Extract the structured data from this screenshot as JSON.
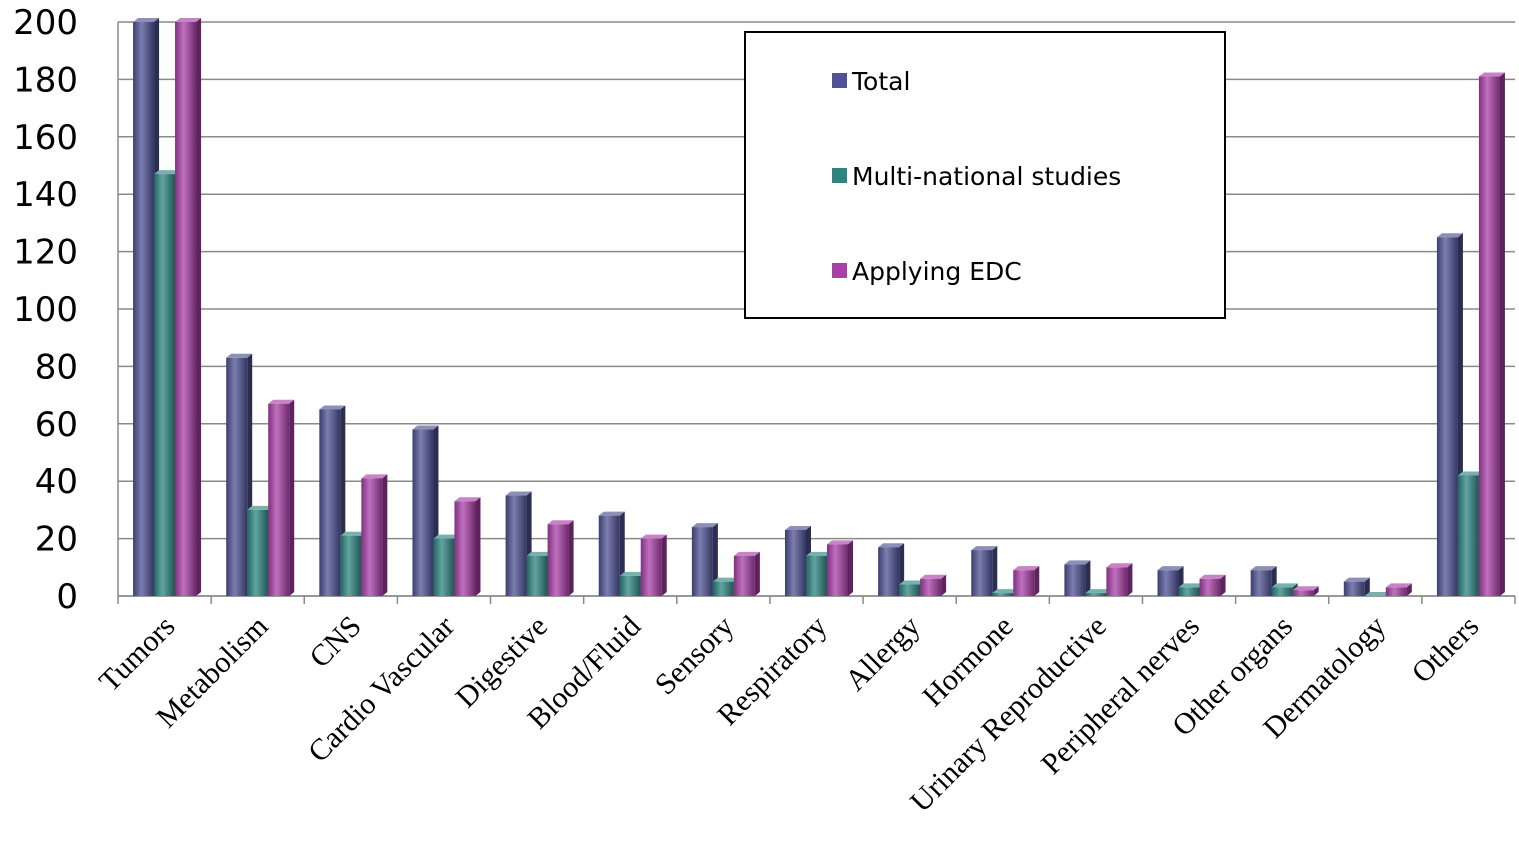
{
  "chart_data": {
    "type": "bar",
    "title": "",
    "xlabel": "",
    "ylabel": "",
    "ylim": [
      0,
      200
    ],
    "yticks": [
      0,
      20,
      40,
      60,
      80,
      100,
      120,
      140,
      160,
      180,
      200
    ],
    "grid": true,
    "legend_position": "top-center",
    "categories": [
      "Tumors",
      "Metabolism",
      "CNS",
      "Cardio Vascular",
      "Digestive",
      "Blood/Fluid",
      "Sensory",
      "Respiratory",
      "Allergy",
      "Hormone",
      "Urinary Reproductive",
      "Peripheral nerves",
      "Other organs",
      "Dermatology",
      "Others"
    ],
    "series": [
      {
        "name": "Total",
        "color": "#4F5393",
        "values": [
          200,
          83,
          65,
          58,
          35,
          28,
          24,
          23,
          17,
          16,
          11,
          9,
          9,
          5,
          125
        ]
      },
      {
        "name": "Multi-national studies",
        "color": "#2E8580",
        "values": [
          147,
          30,
          21,
          20,
          14,
          7,
          5,
          14,
          4,
          1,
          1,
          3,
          3,
          0,
          42
        ]
      },
      {
        "name": "Applying EDC",
        "color": "#A940A8",
        "values": [
          200,
          67,
          41,
          33,
          25,
          20,
          14,
          18,
          6,
          9,
          10,
          6,
          2,
          3,
          181
        ]
      }
    ]
  }
}
